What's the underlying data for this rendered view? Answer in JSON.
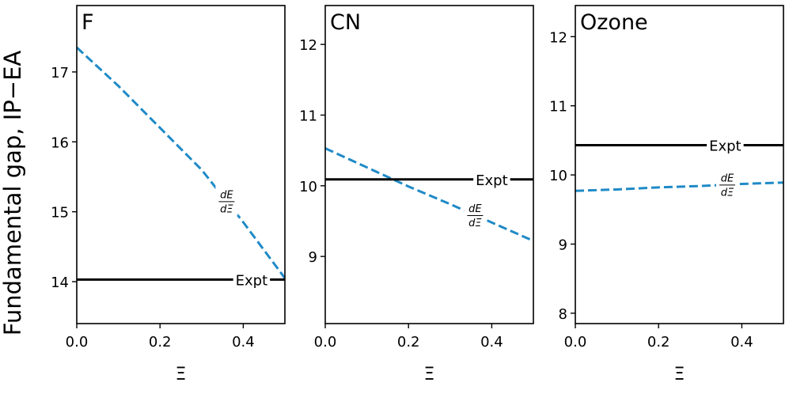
{
  "ylabel": "Fundamental gap, IP−EA",
  "chart_data": [
    {
      "type": "line",
      "title": "F",
      "xlabel": "Ξ",
      "xlim": [
        0,
        0.5
      ],
      "ylim": [
        13.4,
        17.95
      ],
      "xticks": [
        0.0,
        0.2,
        0.4
      ],
      "xtick_labels": [
        "0.0",
        "0.2",
        "0.4"
      ],
      "yticks": [
        14,
        15,
        16,
        17
      ],
      "ytick_labels": [
        "14",
        "15",
        "16",
        "17"
      ],
      "series": [
        {
          "name": "dE/dΞ",
          "style": "dashed",
          "color": "#1f8ac7",
          "x": [
            0.0,
            0.1,
            0.2,
            0.3,
            0.4,
            0.5
          ],
          "y": [
            17.35,
            16.8,
            16.2,
            15.6,
            14.85,
            14.05
          ],
          "label_at": 0.36
        },
        {
          "name": "Expt",
          "style": "solid",
          "color": "#000000",
          "x": [
            0.0,
            0.5
          ],
          "y": [
            14.03,
            14.03
          ],
          "label_at": 0.42
        }
      ]
    },
    {
      "type": "line",
      "title": "CN",
      "xlabel": "Ξ",
      "xlim": [
        0,
        0.5
      ],
      "ylim": [
        8.05,
        12.55
      ],
      "xticks": [
        0.0,
        0.2,
        0.4
      ],
      "xtick_labels": [
        "0.0",
        "0.2",
        "0.4"
      ],
      "yticks": [
        9,
        10,
        11,
        12
      ],
      "ytick_labels": [
        "9",
        "10",
        "11",
        "12"
      ],
      "series": [
        {
          "name": "dE/dΞ",
          "style": "dashed",
          "color": "#1f8ac7",
          "x": [
            0.0,
            0.1,
            0.2,
            0.3,
            0.4,
            0.5
          ],
          "y": [
            10.53,
            10.26,
            9.99,
            9.74,
            9.48,
            9.22
          ],
          "label_at": 0.36
        },
        {
          "name": "Expt",
          "style": "solid",
          "color": "#000000",
          "x": [
            0.0,
            0.5
          ],
          "y": [
            10.09,
            10.09
          ],
          "label_at": 0.4
        }
      ]
    },
    {
      "type": "line",
      "title": "Ozone",
      "xlabel": "Ξ",
      "xlim": [
        0,
        0.5
      ],
      "ylim": [
        7.85,
        12.45
      ],
      "xticks": [
        0.0,
        0.2,
        0.4
      ],
      "xtick_labels": [
        "0.0",
        "0.2",
        "0.4"
      ],
      "yticks": [
        8,
        9,
        10,
        11,
        12
      ],
      "ytick_labels": [
        "8",
        "9",
        "10",
        "11",
        "12"
      ],
      "series": [
        {
          "name": "dE/dΞ",
          "style": "dashed",
          "color": "#1f8ac7",
          "x": [
            0.0,
            0.1,
            0.2,
            0.3,
            0.4,
            0.5
          ],
          "y": [
            9.77,
            9.79,
            9.82,
            9.84,
            9.87,
            9.89
          ],
          "label_at": 0.365
        },
        {
          "name": "Expt",
          "style": "solid",
          "color": "#000000",
          "x": [
            0.0,
            0.5
          ],
          "y": [
            10.43,
            10.43
          ],
          "label_at": 0.36
        }
      ]
    }
  ]
}
